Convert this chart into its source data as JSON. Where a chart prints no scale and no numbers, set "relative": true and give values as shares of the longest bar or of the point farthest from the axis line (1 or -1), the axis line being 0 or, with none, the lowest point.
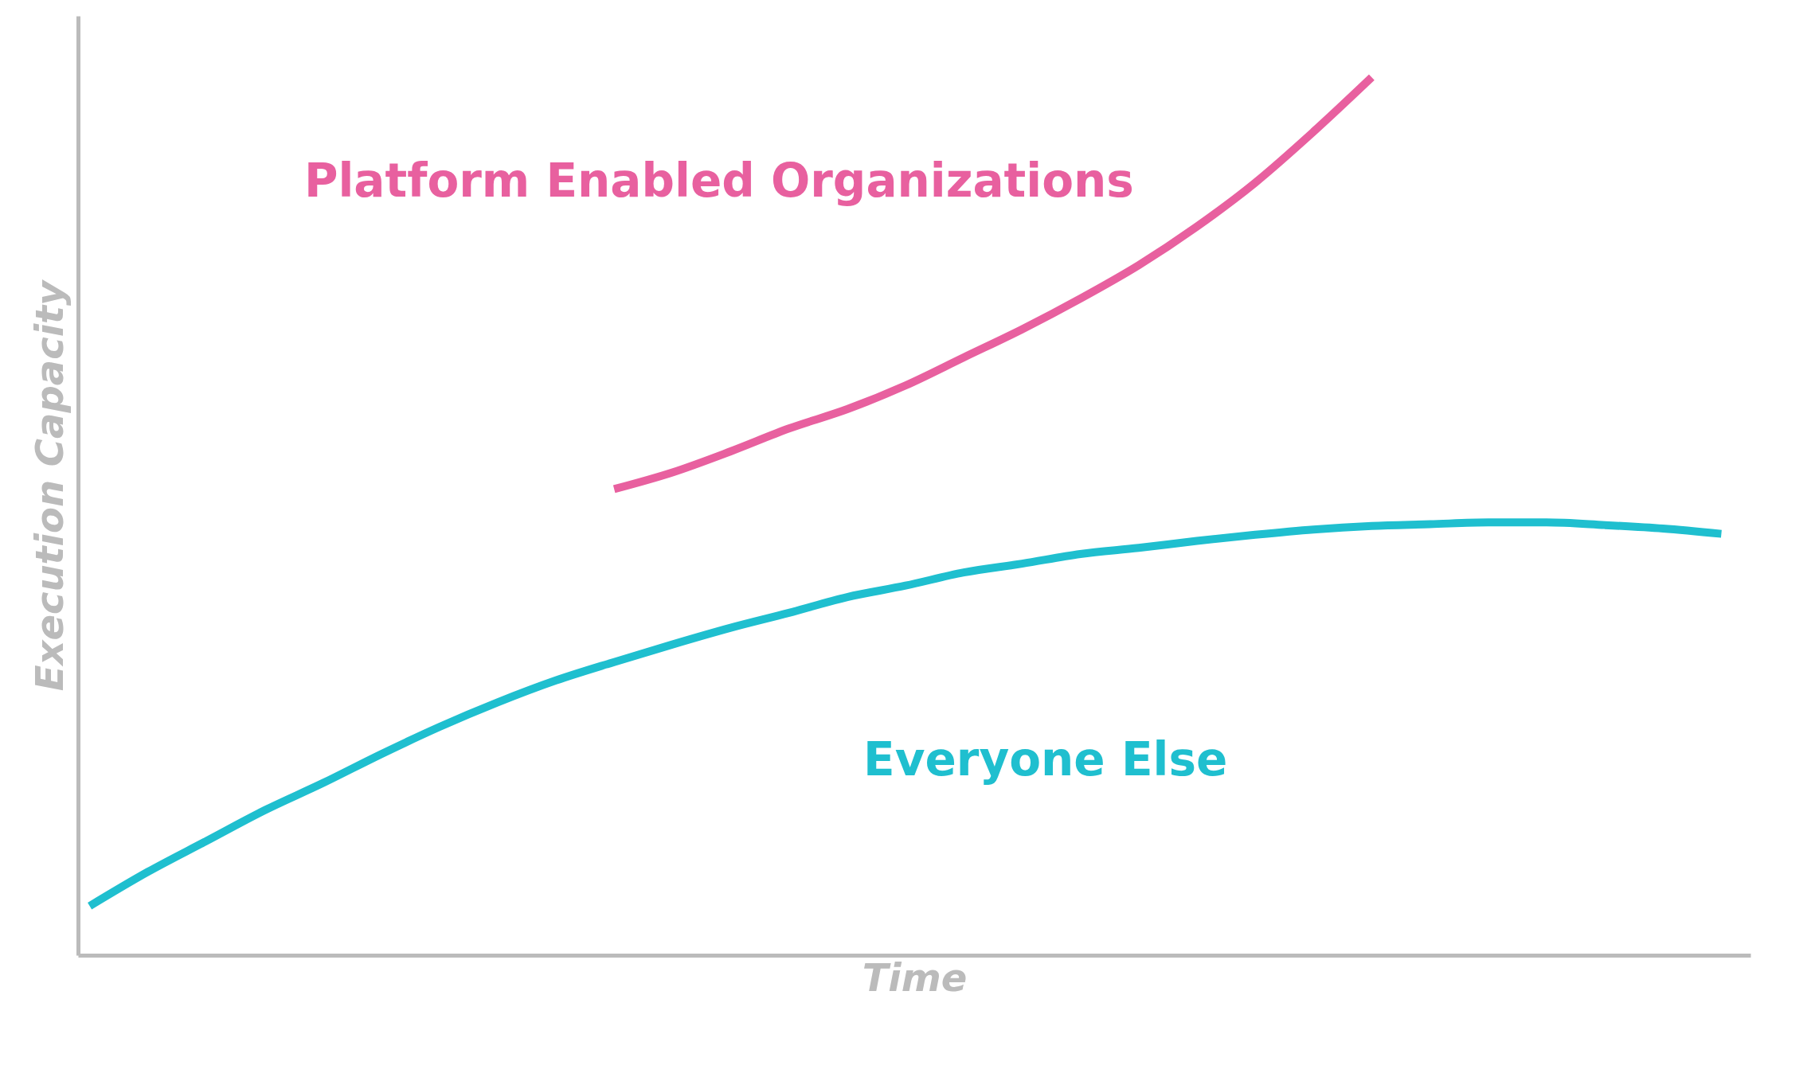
{
  "chart_data": {
    "type": "line",
    "relative": true,
    "xlabel": "Time",
    "ylabel": "Execution Capacity",
    "categories": [
      null,
      null,
      null,
      null,
      null,
      null,
      null,
      null,
      null,
      null,
      null,
      null,
      null,
      null,
      null,
      null,
      null,
      null,
      null,
      null,
      null,
      null,
      null,
      null,
      null,
      null,
      null,
      null,
      null
    ],
    "series": [
      {
        "name": "Platform Enabled Organizations",
        "color": "#e8609f",
        "values": [
          null,
          null,
          null,
          null,
          null,
          null,
          null,
          null,
          null,
          0.531,
          0.55,
          0.574,
          0.6,
          0.622,
          0.649,
          0.681,
          0.713,
          0.748,
          0.786,
          0.83,
          0.88,
          0.938,
          1,
          null,
          null,
          null,
          null,
          null,
          null
        ]
      },
      {
        "name": "Everyone Else",
        "color": "#1fbfcf",
        "values": [
          0.056,
          0.095,
          0.13,
          0.165,
          0.196,
          0.229,
          0.26,
          0.288,
          0.313,
          0.334,
          0.354,
          0.373,
          0.39,
          0.408,
          0.421,
          0.436,
          0.446,
          0.457,
          0.464,
          0.472,
          0.479,
          0.485,
          0.489,
          0.491,
          0.493,
          0.493,
          0.49,
          0.486,
          0.48
        ]
      }
    ],
    "grid": false,
    "legend": false
  }
}
